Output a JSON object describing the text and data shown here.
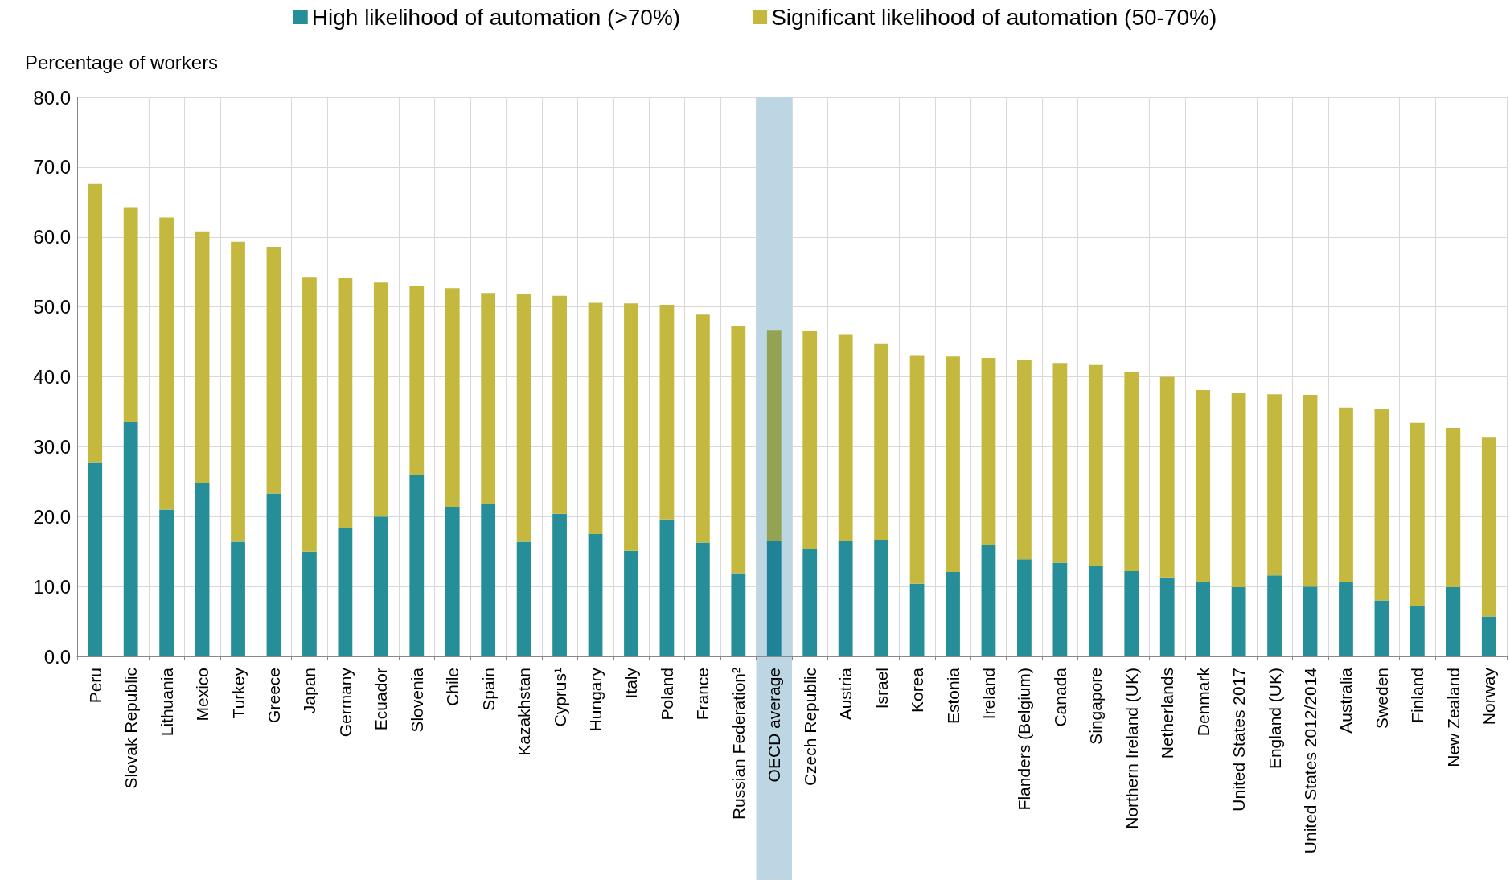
{
  "chart_data": {
    "type": "bar",
    "stacked": true,
    "ylabel": "Percentage of workers",
    "categories": [
      "Peru",
      "Slovak Republic",
      "Lithuania",
      "Mexico",
      "Turkey",
      "Greece",
      "Japan",
      "Germany",
      "Ecuador",
      "Slovenia",
      "Chile",
      "Spain",
      "Kazakhstan",
      "Cyprus¹",
      "Hungary",
      "Italy",
      "Poland",
      "France",
      "Russian Federation²",
      "OECD average",
      "Czech Republic",
      "Austria",
      "Israel",
      "Korea",
      "Estonia",
      "Ireland",
      "Flanders (Belgium)",
      "Canada",
      "Singapore",
      "Northern Ireland (UK)",
      "Netherlands",
      "Denmark",
      "United States 2017",
      "England (UK)",
      "United States 2012/2014",
      "Australia",
      "Sweden",
      "Finland",
      "New Zealand",
      "Norway"
    ],
    "series": [
      {
        "name": "High likelihood of automation (>70%)",
        "color": "#258e99",
        "colors": [
          "#258e99",
          "#258e99",
          "#258e99",
          "#258e99",
          "#258e99",
          "#258e99",
          "#258e99",
          "#258e99",
          "#258e99",
          "#258e99",
          "#258e99",
          "#258e99",
          "#258e99",
          "#258e99",
          "#258e99",
          "#258e99",
          "#258e99",
          "#258e99",
          "#258e99",
          "#1f8296",
          "#258e99",
          "#258e99",
          "#258e99",
          "#258e99",
          "#258e99",
          "#258e99",
          "#258e99",
          "#258e99",
          "#258e99",
          "#258e99",
          "#258e99",
          "#258e99",
          "#258e99",
          "#258e99",
          "#258e99",
          "#258e99",
          "#258e99",
          "#258e99",
          "#258e99",
          "#258e99"
        ],
        "values": [
          27.8,
          33.5,
          21.0,
          24.8,
          16.4,
          23.3,
          15.0,
          18.3,
          20.0,
          25.9,
          21.4,
          21.8,
          16.4,
          20.4,
          17.5,
          15.1,
          19.6,
          16.3,
          11.9,
          16.5,
          15.4,
          16.5,
          16.7,
          10.4,
          12.1,
          15.9,
          13.9,
          13.4,
          12.9,
          12.2,
          11.3,
          10.6,
          9.9,
          11.6,
          10.0,
          10.6,
          8.0,
          7.2,
          9.9,
          5.7
        ]
      },
      {
        "name": "Significant likelihood of automation (50-70%)",
        "color": "#c4b83e",
        "colors": [
          "#c4b83e",
          "#c4b83e",
          "#c4b83e",
          "#c4b83e",
          "#c4b83e",
          "#c4b83e",
          "#c4b83e",
          "#c4b83e",
          "#c4b83e",
          "#c4b83e",
          "#c4b83e",
          "#c4b83e",
          "#c4b83e",
          "#c4b83e",
          "#c4b83e",
          "#c4b83e",
          "#c4b83e",
          "#c4b83e",
          "#c4b83e",
          "#93a352",
          "#c4b83e",
          "#c4b83e",
          "#c4b83e",
          "#c4b83e",
          "#c4b83e",
          "#c4b83e",
          "#c4b83e",
          "#c4b83e",
          "#c4b83e",
          "#c4b83e",
          "#c4b83e",
          "#c4b83e",
          "#c4b83e",
          "#c4b83e",
          "#c4b83e",
          "#c4b83e",
          "#c4b83e",
          "#c4b83e",
          "#c4b83e",
          "#c4b83e"
        ],
        "values": [
          39.8,
          30.8,
          41.8,
          36.0,
          42.9,
          35.3,
          39.2,
          35.8,
          33.5,
          27.1,
          31.3,
          30.2,
          35.5,
          31.2,
          33.1,
          35.4,
          30.7,
          32.7,
          35.4,
          30.2,
          31.2,
          29.6,
          28.0,
          32.7,
          30.8,
          26.8,
          28.5,
          28.6,
          28.8,
          28.5,
          28.7,
          27.5,
          27.8,
          25.9,
          27.4,
          25.0,
          27.4,
          26.2,
          22.8,
          25.7
        ]
      }
    ],
    "bands": [
      {
        "axis": "x",
        "from": "OECD average",
        "to": "OECD average",
        "color": "#bcd6e4"
      }
    ],
    "ylim": [
      0,
      80
    ],
    "yticks": [
      {
        "value": 0,
        "label": "0.0"
      },
      {
        "value": 10,
        "label": "10.0"
      },
      {
        "value": 20,
        "label": "20.0"
      },
      {
        "value": 30,
        "label": "30.0"
      },
      {
        "value": 40,
        "label": "40.0"
      },
      {
        "value": 50,
        "label": "50.0"
      },
      {
        "value": 60,
        "label": "60.0"
      },
      {
        "value": 70,
        "label": "70.0"
      },
      {
        "value": 80,
        "label": "80.0"
      }
    ],
    "grid": true,
    "legend": "top"
  }
}
